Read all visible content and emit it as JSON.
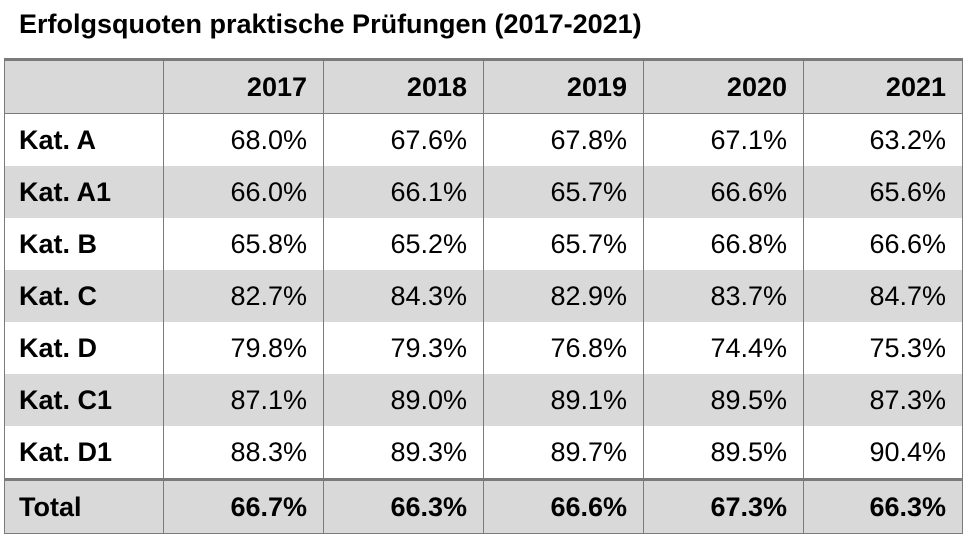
{
  "title": "Erfolgsquoten praktische Prüfungen (2017-2021)",
  "chart_data": {
    "type": "table",
    "title": "Erfolgsquoten praktische Prüfungen (2017-2021)",
    "columns": [
      "",
      "2017",
      "2018",
      "2019",
      "2020",
      "2021"
    ],
    "rows": [
      {
        "label": "Kat. A",
        "values": [
          "68.0%",
          "67.6%",
          "67.8%",
          "67.1%",
          "63.2%"
        ]
      },
      {
        "label": "Kat. A1",
        "values": [
          "66.0%",
          "66.1%",
          "65.7%",
          "66.6%",
          "65.6%"
        ]
      },
      {
        "label": "Kat. B",
        "values": [
          "65.8%",
          "65.2%",
          "65.7%",
          "66.8%",
          "66.6%"
        ]
      },
      {
        "label": "Kat. C",
        "values": [
          "82.7%",
          "84.3%",
          "82.9%",
          "83.7%",
          "84.7%"
        ]
      },
      {
        "label": "Kat. D",
        "values": [
          "79.8%",
          "79.3%",
          "76.8%",
          "74.4%",
          "75.3%"
        ]
      },
      {
        "label": "Kat. C1",
        "values": [
          "87.1%",
          "89.0%",
          "89.1%",
          "89.5%",
          "87.3%"
        ]
      },
      {
        "label": "Kat. D1",
        "values": [
          "88.3%",
          "89.3%",
          "89.7%",
          "89.5%",
          "90.4%"
        ]
      },
      {
        "label": "Total",
        "values": [
          "66.7%",
          "66.3%",
          "66.6%",
          "67.3%",
          "66.3%"
        ]
      }
    ],
    "colors": {
      "header_fill": "#d9d9d9",
      "stripe_fill": "#d9d9d9",
      "rule": "#7a7a7a"
    }
  }
}
